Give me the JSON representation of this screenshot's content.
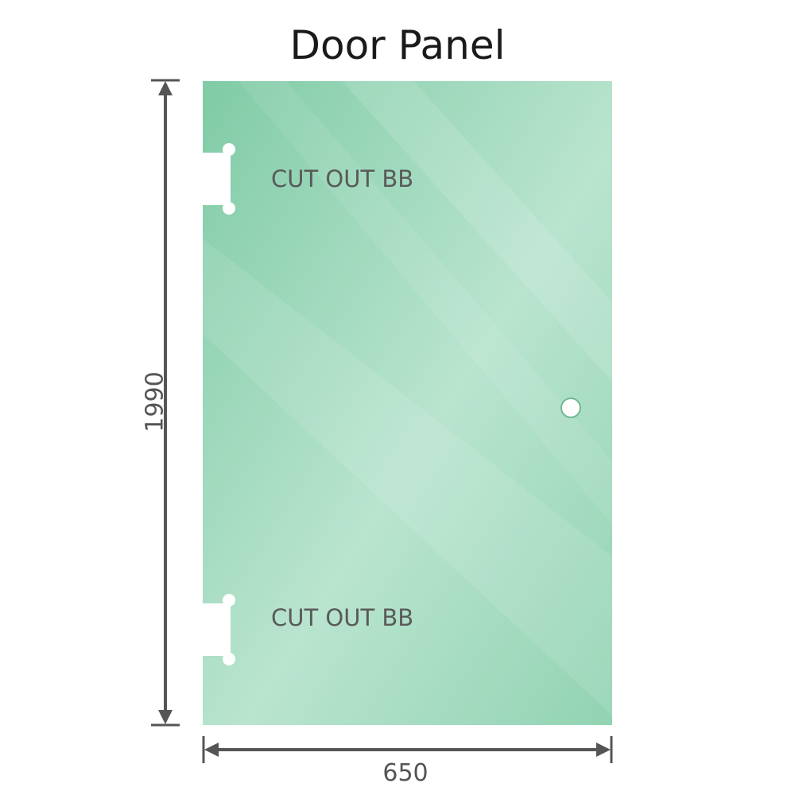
{
  "title": "Door Panel",
  "panel": {
    "color": "#8fd1b0",
    "cutouts": [
      {
        "label": "CUT OUT BB"
      },
      {
        "label": "CUT OUT BB"
      }
    ]
  },
  "dimensions": {
    "height": "1990",
    "width": "650",
    "line_color": "#555555"
  }
}
